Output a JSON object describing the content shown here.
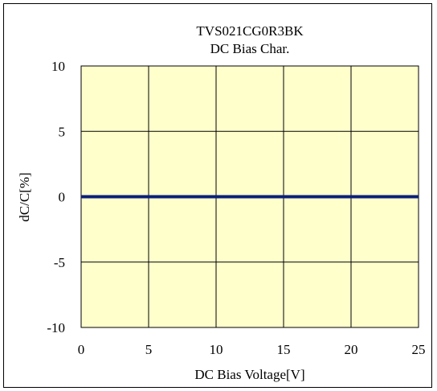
{
  "chart_data": {
    "type": "line",
    "title": "TVS021CG0R3BK",
    "subtitle": "DC Bias Char.",
    "xlabel": "DC Bias Voltage[V]",
    "ylabel": "dC/C[%]",
    "xlim": [
      0,
      25
    ],
    "ylim": [
      -10,
      10
    ],
    "xticks": [
      0,
      5,
      10,
      15,
      20,
      25
    ],
    "yticks": [
      -10,
      -5,
      0,
      5,
      10
    ],
    "xtick_labels": [
      "0",
      "5",
      "10",
      "15",
      "20",
      "25"
    ],
    "ytick_labels": [
      "-10",
      "-5",
      "0",
      "5",
      "10"
    ],
    "grid": true,
    "plot_background": "#ffffcc",
    "series": [
      {
        "color": "#0b1f7a",
        "x": [
          0,
          5,
          10,
          15,
          20,
          25
        ],
        "y": [
          0,
          0,
          0,
          0,
          0,
          0
        ]
      }
    ]
  }
}
